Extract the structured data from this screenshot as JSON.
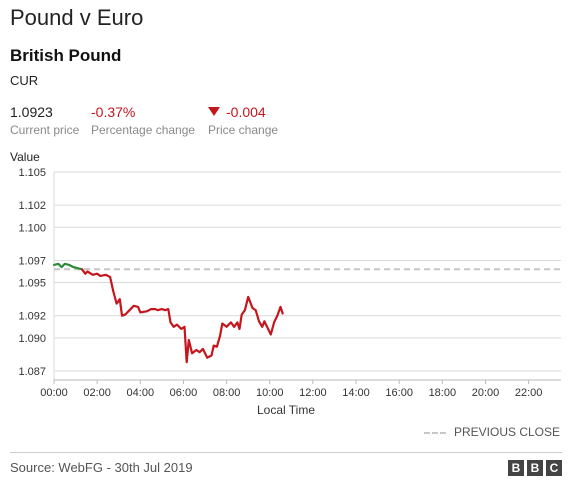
{
  "header": {
    "title": "Pound v Euro",
    "subtitle": "British Pound",
    "code": "CUR"
  },
  "stats": {
    "current_price": "1.0923",
    "current_price_label": "Current price",
    "percentage_change": "-0.37%",
    "percentage_change_label": "Percentage change",
    "price_change": "-0.004",
    "price_change_label": "Price change"
  },
  "legend": {
    "previous_close_label": "PREVIOUS CLOSE"
  },
  "footer": {
    "source": "Source: WebFG - 30th Jul 2019",
    "logo_letters": [
      "B",
      "B",
      "C"
    ]
  },
  "colors": {
    "up": "#2e8b3a",
    "down": "#c4161c",
    "previous_close": "#c6c6c6"
  },
  "chart_data": {
    "type": "line",
    "ylabel": "Value",
    "xlabel": "Local Time",
    "x_unit": "hours",
    "xlim": [
      0,
      23.5
    ],
    "ylim": [
      1.087,
      1.105
    ],
    "yticks": [
      1.105,
      1.102,
      1.1,
      1.097,
      1.095,
      1.092,
      1.09,
      1.087
    ],
    "ytick_labels": [
      "1.105",
      "1.102",
      "1.100",
      "1.097",
      "1.095",
      "1.092",
      "1.090",
      "1.087"
    ],
    "xticks": [
      0,
      2,
      4,
      6,
      8,
      10,
      12,
      14,
      16,
      18,
      20,
      22
    ],
    "xtick_labels": [
      "00:00",
      "02:00",
      "04:00",
      "06:00",
      "08:00",
      "10:00",
      "12:00",
      "14:00",
      "16:00",
      "18:00",
      "20:00",
      "22:00"
    ],
    "previous_close": 1.0962,
    "grid": true,
    "legend_position": "bottom-right",
    "series": [
      {
        "x": [
          0.0,
          0.2,
          0.35,
          0.5,
          0.7,
          0.9,
          1.1,
          1.3
        ],
        "y": [
          1.0966,
          1.0967,
          1.0964,
          1.0967,
          1.0966,
          1.0964,
          1.0963,
          1.0962
        ]
      },
      {
        "x": [
          1.3,
          1.45,
          1.55,
          1.8,
          2.0,
          2.15,
          2.4,
          2.6,
          2.75,
          2.9,
          3.05,
          3.15,
          3.3,
          3.5,
          3.7,
          3.9,
          4.0,
          4.3,
          4.5,
          4.7,
          4.8,
          5.0,
          5.15,
          5.3,
          5.4,
          5.55,
          5.7,
          5.9,
          6.05,
          6.15,
          6.25,
          6.4,
          6.6,
          6.75,
          6.9,
          7.1,
          7.3,
          7.4,
          7.55,
          7.7,
          7.8,
          8.0,
          8.2,
          8.35,
          8.5,
          8.6,
          8.7,
          8.85,
          9.0,
          9.2,
          9.35,
          9.5,
          9.65,
          9.75,
          9.9,
          10.05,
          10.2,
          10.35,
          10.5,
          10.6
        ],
        "y": [
          1.0962,
          1.0958,
          1.096,
          1.0957,
          1.0958,
          1.0956,
          1.0957,
          1.0955,
          1.0942,
          1.0931,
          1.0935,
          1.092,
          1.0921,
          1.0925,
          1.0929,
          1.0928,
          1.0923,
          1.0924,
          1.0926,
          1.0926,
          1.0925,
          1.0926,
          1.0925,
          1.0926,
          1.0914,
          1.091,
          1.0912,
          1.0908,
          1.091,
          1.0878,
          1.0898,
          1.0886,
          1.0889,
          1.0887,
          1.089,
          1.0882,
          1.0884,
          1.0893,
          1.0892,
          1.0902,
          1.0913,
          1.091,
          1.0914,
          1.091,
          1.0914,
          1.0908,
          1.0921,
          1.0925,
          1.0937,
          1.0927,
          1.0925,
          1.0915,
          1.091,
          1.0915,
          1.0909,
          1.0903,
          1.0914,
          1.092,
          1.0928,
          1.0922
        ]
      }
    ]
  }
}
